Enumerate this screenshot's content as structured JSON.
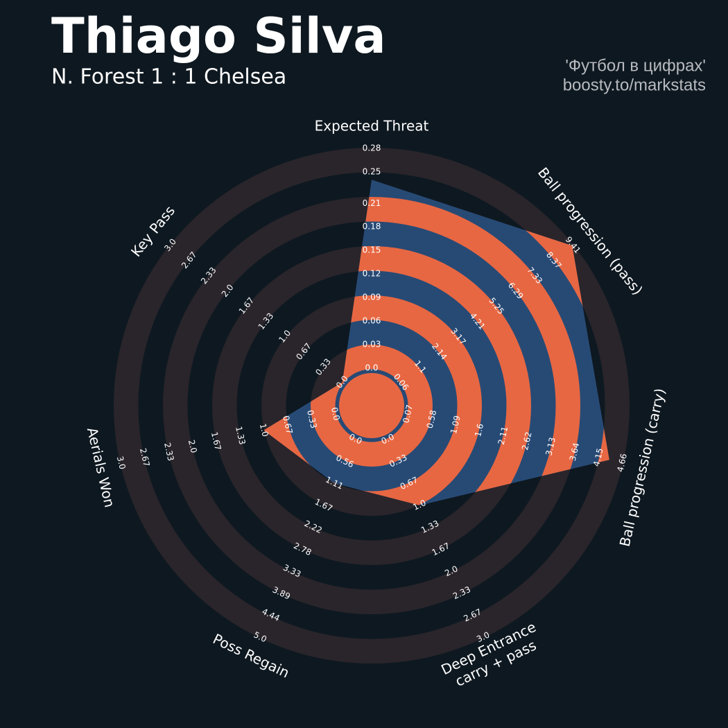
{
  "chart_data": {
    "type": "radar",
    "title": "Thiago Silva",
    "subtitle": "N. Forest 1 : 1 Chelsea",
    "credits": [
      "'Футбол в цифрах'",
      "boosty.to/markstats"
    ],
    "categories": [
      [
        "Expected Threat"
      ],
      [
        "Ball progression (pass)"
      ],
      [
        "Ball progression (carry)"
      ],
      [
        "Deep Entrance",
        "carry + pass"
      ],
      [
        "Poss Regain"
      ],
      [
        "Aerials Won"
      ],
      [
        "Key Pass"
      ]
    ],
    "values": [
      0.24,
      9.38,
      4.38,
      1.0,
      1.11,
      1.0,
      0.0
    ],
    "ranges": [
      [
        0,
        0.28
      ],
      [
        0.06,
        9.41
      ],
      [
        0.07,
        4.66
      ],
      [
        0,
        3
      ],
      [
        0,
        5
      ],
      [
        0,
        3
      ],
      [
        0,
        3
      ]
    ],
    "rticks": [
      [
        {
          "value": 0,
          "label": "0.0"
        },
        0.03,
        0.06,
        0.09,
        0.12,
        0.15,
        0.18,
        0.21,
        0.25,
        0.28
      ],
      [
        0.06,
        1.1,
        2.14,
        3.17,
        4.21,
        5.25,
        6.29,
        7.33,
        8.37,
        9.41
      ],
      [
        0.07,
        0.58,
        1.09,
        1.6,
        2.11,
        2.62,
        3.13,
        3.64,
        4.15,
        4.66
      ],
      [
        {
          "value": 0,
          "label": "0.0"
        },
        0.33,
        0.67,
        {
          "value": 1,
          "label": "1.0"
        },
        1.33,
        1.67,
        {
          "value": 2,
          "label": "2.0"
        },
        2.33,
        2.67,
        {
          "value": 3,
          "label": "3.0"
        }
      ],
      [
        {
          "value": 0,
          "label": "0.0"
        },
        0.56,
        1.11,
        1.67,
        2.22,
        2.78,
        3.33,
        3.89,
        4.44,
        {
          "value": 5,
          "label": "5.0"
        }
      ],
      [
        {
          "value": 0,
          "label": "0.0"
        },
        0.33,
        0.67,
        {
          "value": 1,
          "label": "1.0"
        },
        1.33,
        1.67,
        {
          "value": 2,
          "label": "2.0"
        },
        2.33,
        2.67,
        {
          "value": 3,
          "label": "3.0"
        }
      ],
      [
        {
          "value": 0,
          "label": "0.0"
        },
        0.33,
        0.67,
        {
          "value": 1,
          "label": "1.0"
        },
        1.33,
        1.67,
        {
          "value": 2,
          "label": "2.0"
        },
        2.33,
        2.67,
        {
          "value": 3,
          "label": "3.0"
        }
      ]
    ],
    "color": "#274a75",
    "stripe_color": "#e76742",
    "ring_color": "#29252b"
  }
}
